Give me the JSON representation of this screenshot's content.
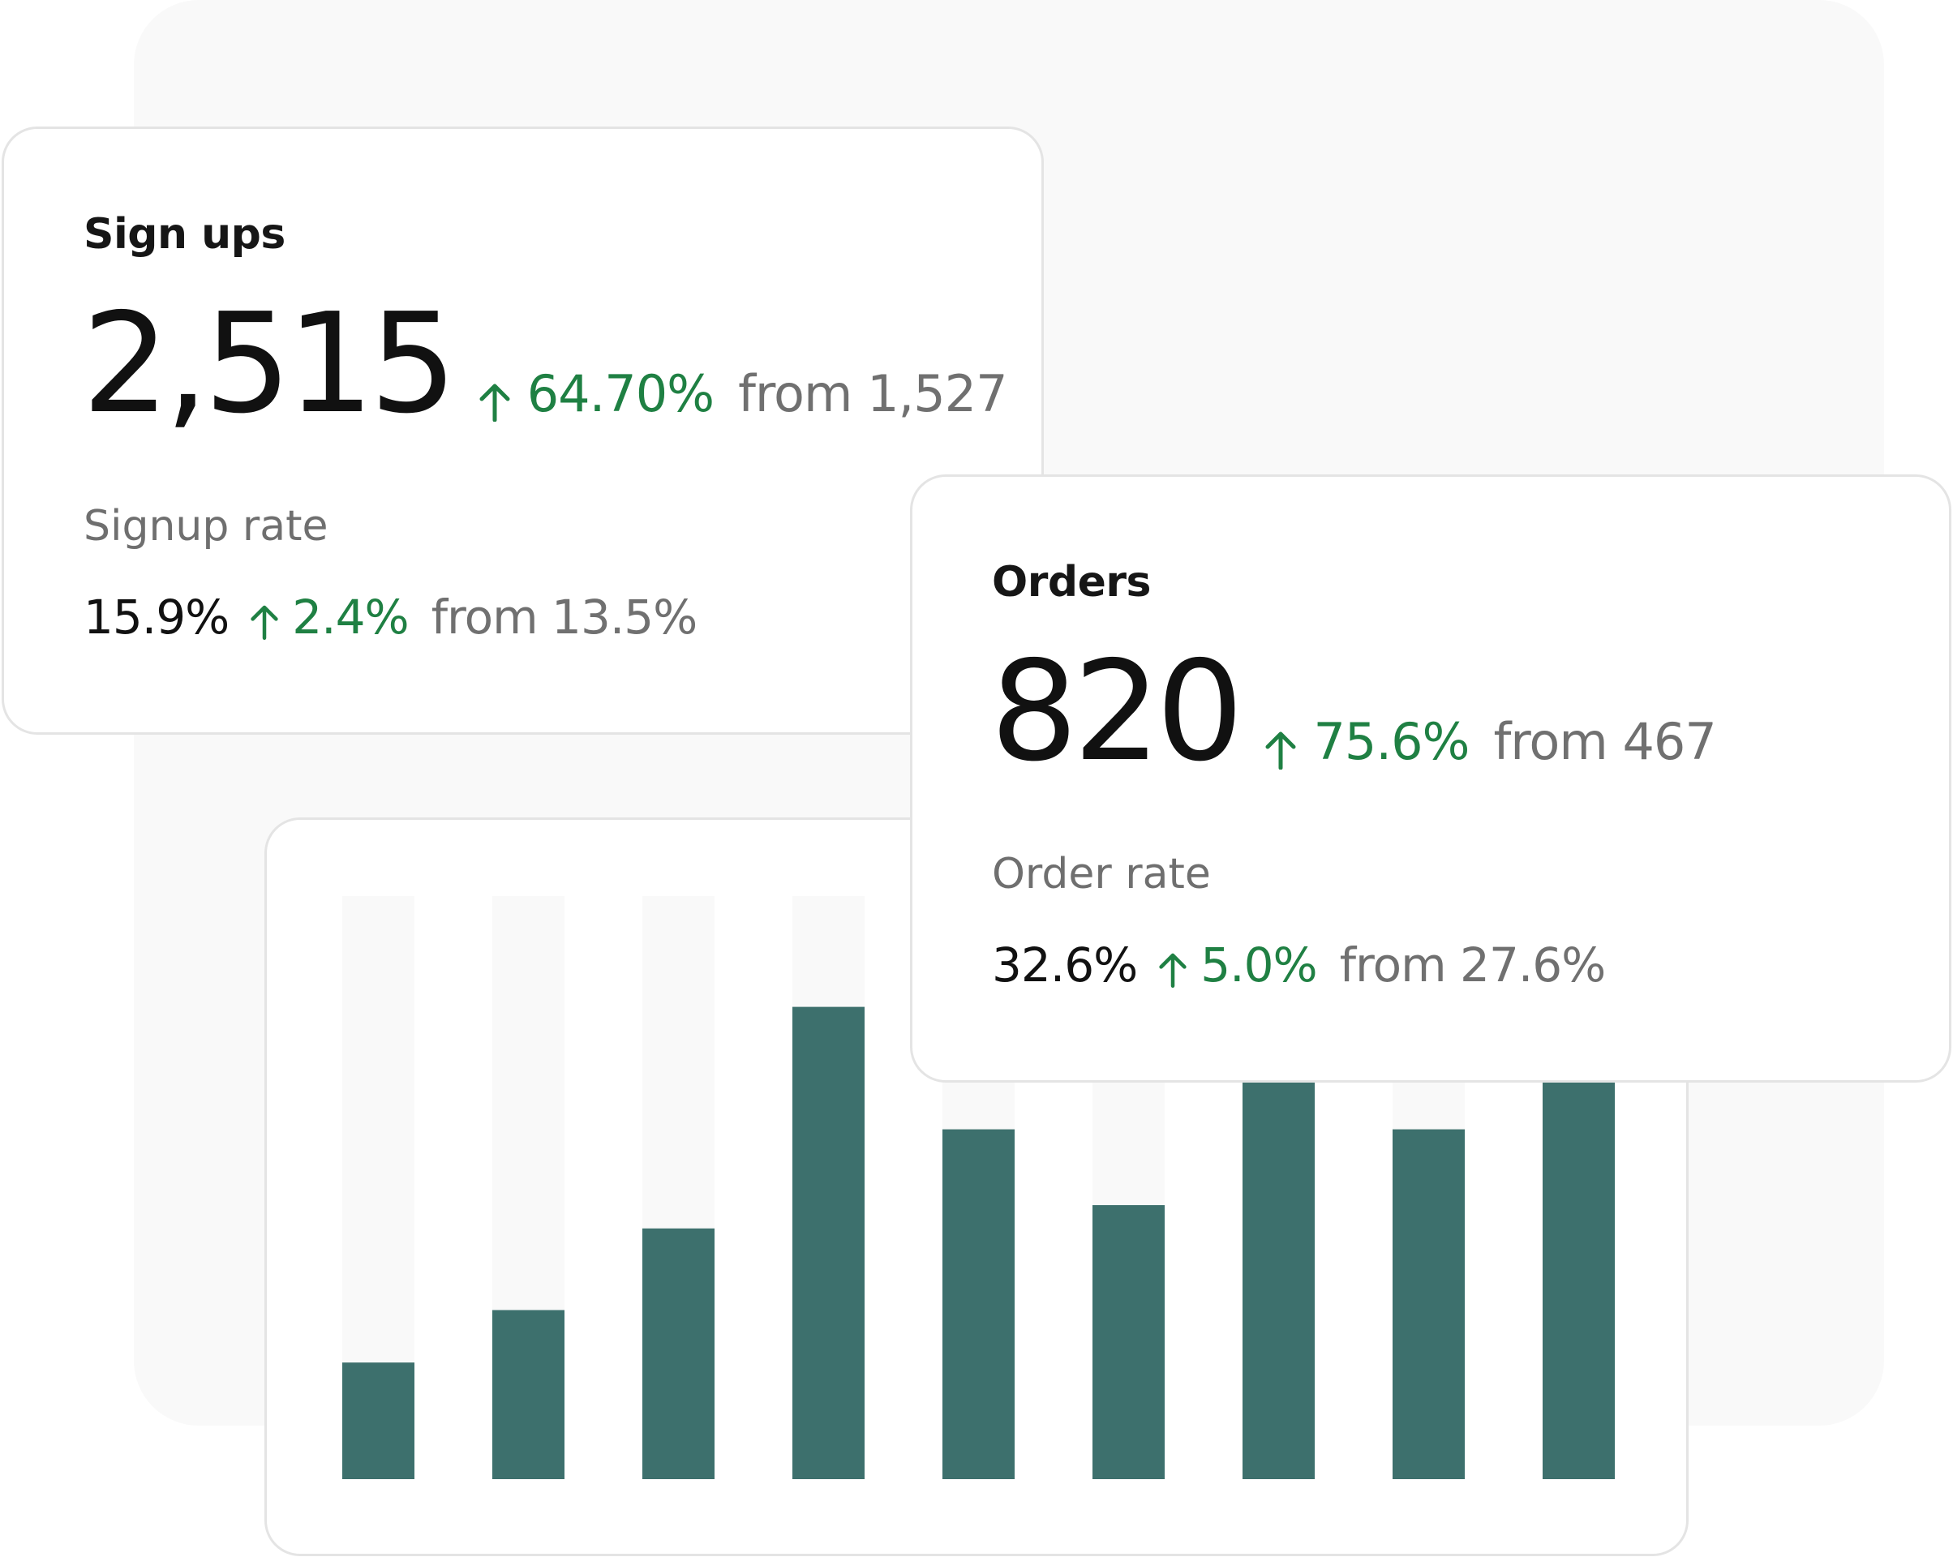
{
  "signups_card": {
    "title": "Sign ups",
    "value": "2,515",
    "delta": "64.70%",
    "from": "from 1,527",
    "rate_label": "Signup rate",
    "rate_value": "15.9%",
    "rate_delta": "2.4%",
    "rate_from": "from 13.5%"
  },
  "orders_card": {
    "title": "Orders",
    "value": "820",
    "delta": "75.6%",
    "from": "from 467",
    "rate_label": "Order rate",
    "rate_value": "32.6%",
    "rate_delta": "5.0%",
    "rate_from": "from 27.6%"
  },
  "icons": {
    "delta_arrow": "arrow-up-icon"
  },
  "colors": {
    "positive": "#1f8043",
    "bar": "#3d706d",
    "bar_track": "#f9f9f9",
    "value_text": "#111111",
    "muted_text": "#707070"
  },
  "chart_data": {
    "type": "bar",
    "values": [
      20,
      29,
      43,
      81,
      60,
      47,
      70,
      60,
      70
    ],
    "ylim": [
      0,
      100
    ],
    "grid": false,
    "legend": "none"
  }
}
